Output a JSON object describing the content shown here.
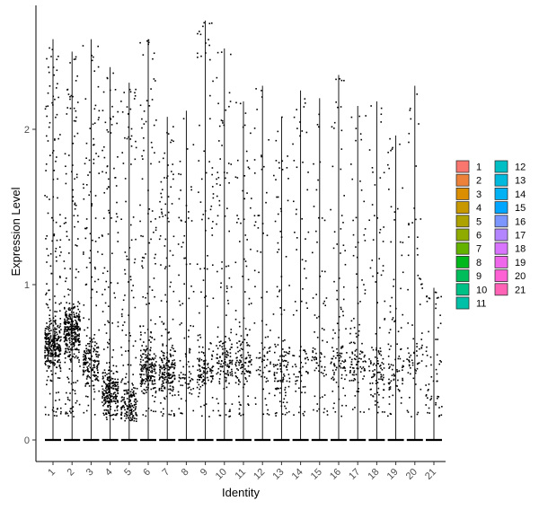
{
  "chart_data": {
    "type": "violin",
    "xlabel": "Identity",
    "ylabel": "Expression Level",
    "categories": [
      "1",
      "2",
      "3",
      "4",
      "5",
      "6",
      "7",
      "8",
      "9",
      "10",
      "11",
      "12",
      "13",
      "14",
      "15",
      "16",
      "17",
      "18",
      "19",
      "20",
      "21"
    ],
    "ylim": [
      -0.14,
      2.85
    ],
    "yticks": [
      0,
      1,
      2
    ],
    "ytick_labels": [
      "0",
      "1",
      "2"
    ],
    "max_expression": [
      2.58,
      2.5,
      2.58,
      2.4,
      2.3,
      2.58,
      2.08,
      2.12,
      2.7,
      2.52,
      2.18,
      2.28,
      2.08,
      2.25,
      2.2,
      2.35,
      2.15,
      2.18,
      1.96,
      2.28,
      0.98
    ],
    "dense_center": [
      0.6,
      0.7,
      0.5,
      0.3,
      0.22,
      0.45,
      0.45,
      0.4,
      0.45,
      0.5,
      0.5,
      0.5,
      0.45,
      0.5,
      0.5,
      0.5,
      0.5,
      0.45,
      0.45,
      0.5,
      0.5
    ],
    "cell_density": [
      1.0,
      1.0,
      0.55,
      0.7,
      0.5,
      0.6,
      0.55,
      0.15,
      0.35,
      0.35,
      0.3,
      0.12,
      0.25,
      0.12,
      0.1,
      0.2,
      0.2,
      0.2,
      0.15,
      0.1,
      0.05
    ],
    "legend": {
      "title": "",
      "entries": [
        {
          "label": "1",
          "color": "#F8766D"
        },
        {
          "label": "2",
          "color": "#EC8239"
        },
        {
          "label": "3",
          "color": "#DB8E00"
        },
        {
          "label": "4",
          "color": "#C79800"
        },
        {
          "label": "5",
          "color": "#AEA200"
        },
        {
          "label": "6",
          "color": "#8FAA00"
        },
        {
          "label": "7",
          "color": "#64B200"
        },
        {
          "label": "8",
          "color": "#00B81B"
        },
        {
          "label": "9",
          "color": "#00BD5C"
        },
        {
          "label": "10",
          "color": "#00C085"
        },
        {
          "label": "11",
          "color": "#00C1A7"
        },
        {
          "label": "12",
          "color": "#00BFC4"
        },
        {
          "label": "13",
          "color": "#00BADE"
        },
        {
          "label": "14",
          "color": "#00B2F3"
        },
        {
          "label": "15",
          "color": "#00A6FF"
        },
        {
          "label": "16",
          "color": "#7C96FF"
        },
        {
          "label": "17",
          "color": "#B385FF"
        },
        {
          "label": "18",
          "color": "#D874FD"
        },
        {
          "label": "19",
          "color": "#EF67EB"
        },
        {
          "label": "20",
          "color": "#FD61D3"
        },
        {
          "label": "21",
          "color": "#FF63B6"
        }
      ]
    }
  }
}
